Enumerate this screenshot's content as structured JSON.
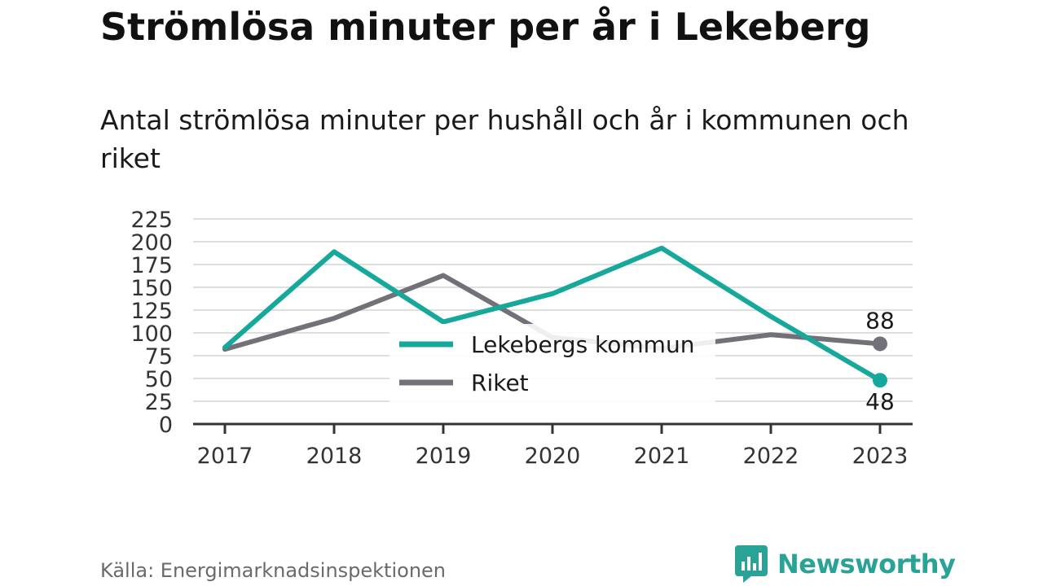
{
  "title": "Strömlösa minuter per år i Lekeberg",
  "subtitle": "Antal strömlösa minuter per hushåll och år i kommunen och riket",
  "source": "Källa: Energimarknadsinspektionen",
  "brand": {
    "name": "Newsworthy",
    "icon": "newsworthy-logo-icon",
    "color": "#2aa397"
  },
  "chart_data": {
    "type": "line",
    "title": "Strömlösa minuter per år i Lekeberg",
    "subtitle": "Antal strömlösa minuter per hushåll och år i kommunen och riket",
    "xlabel": "",
    "ylabel": "",
    "categories": [
      "2017",
      "2018",
      "2019",
      "2020",
      "2021",
      "2022",
      "2023"
    ],
    "ylim": [
      0,
      225
    ],
    "yticks": [
      "0",
      "25",
      "50",
      "75",
      "100",
      "125",
      "150",
      "175",
      "200",
      "225"
    ],
    "grid": true,
    "legend_placement": "center",
    "series": [
      {
        "name": "Lekebergs kommun",
        "color": "#16a89b",
        "values": [
          84,
          189,
          112,
          143,
          193,
          118,
          48
        ],
        "end_label": "48"
      },
      {
        "name": "Riket",
        "color": "#727079",
        "values": [
          82,
          116,
          163,
          95,
          83,
          98,
          88
        ],
        "end_label": "88"
      }
    ]
  }
}
